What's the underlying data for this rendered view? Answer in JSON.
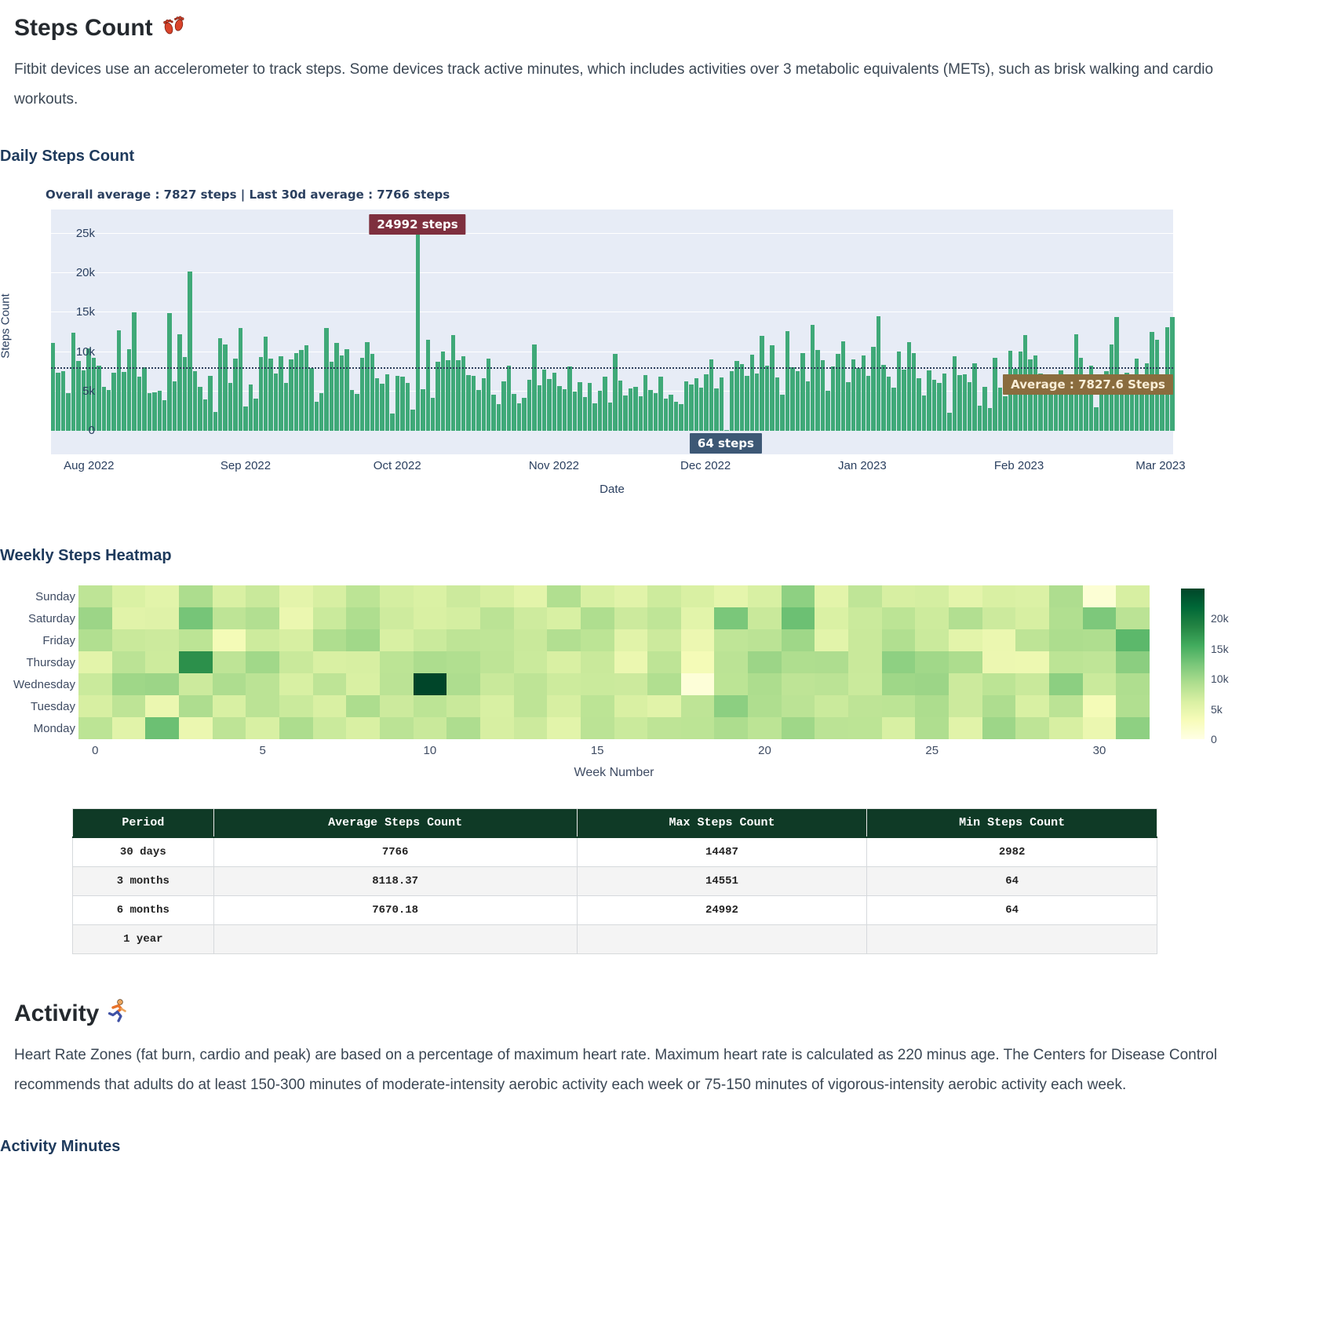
{
  "steps": {
    "title": "Steps Count",
    "description": "Fitbit devices use an accelerometer to track steps. Some devices track active minutes, which includes activities over 3 metabolic equivalents (METs), such as brisk walking and cardio workouts."
  },
  "activity": {
    "title": "Activity",
    "description": "Heart Rate Zones (fat burn, cardio and peak) are based on a percentage of maximum heart rate. Maximum heart rate is calculated as 220 minus age. The Centers for Disease Control recommends that adults do at least 150-300 minutes of moderate-intensity aerobic activity each week or 75-150 minutes of vigorous-intensity aerobic activity each week.",
    "subsection": "Activity Minutes"
  },
  "colors": {
    "bar": "#3fa978",
    "plot_bg": "#e7ecf6",
    "badge_max": "#7e2f3e",
    "badge_min": "#3d5875",
    "badge_avg": "#8a6c3e",
    "table_header": "#0f3a26",
    "heading_blue": "#1e3a5c"
  },
  "chart_data": [
    {
      "id": "daily_steps",
      "type": "bar",
      "title": "Daily Steps Count",
      "subtitle": "Overall average : 7827 steps | Last 30d average : 7766 steps",
      "xlabel": "Date",
      "ylabel": "Steps Count",
      "ylim": [
        0,
        28000
      ],
      "grid": true,
      "yticks": [
        {
          "label": "0",
          "v": 0
        },
        {
          "label": "5k",
          "v": 5000
        },
        {
          "label": "10k",
          "v": 10000
        },
        {
          "label": "15k",
          "v": 15000
        },
        {
          "label": "20k",
          "v": 20000
        },
        {
          "label": "25k",
          "v": 25000
        }
      ],
      "x_months": [
        {
          "label": "Aug 2022",
          "idx": 7
        },
        {
          "label": "Sep 2022",
          "idx": 38
        },
        {
          "label": "Oct 2022",
          "idx": 68
        },
        {
          "label": "Nov 2022",
          "idx": 99
        },
        {
          "label": "Dec 2022",
          "idx": 129
        },
        {
          "label": "Jan 2023",
          "idx": 160
        },
        {
          "label": "Feb 2023",
          "idx": 191
        },
        {
          "label": "Mar 2023",
          "idx": 219
        }
      ],
      "average": 7827.6,
      "annotations": {
        "max": {
          "label": "24992 steps",
          "idx": 72
        },
        "min": {
          "label": "64 steps",
          "idx": 133
        },
        "avg": {
          "label": "Average : 7827.6 Steps"
        }
      },
      "values": [
        11200,
        7400,
        7600,
        4800,
        12500,
        8900,
        7700,
        10500,
        9300,
        8300,
        5600,
        5200,
        7400,
        12800,
        7500,
        10400,
        15000,
        6900,
        8100,
        4800,
        4900,
        5100,
        3900,
        14900,
        6300,
        12300,
        9400,
        20200,
        7600,
        5600,
        4000,
        7000,
        2400,
        11800,
        11000,
        6100,
        9200,
        13000,
        3100,
        5900,
        4100,
        9400,
        12000,
        9200,
        7300,
        9500,
        6100,
        9100,
        9900,
        10300,
        10900,
        8000,
        3700,
        4800,
        13000,
        8800,
        11200,
        9600,
        10400,
        5200,
        4700,
        9300,
        11300,
        9800,
        6700,
        6000,
        7200,
        2200,
        7000,
        6900,
        6100,
        2700,
        24992,
        5300,
        11600,
        4200,
        8800,
        10100,
        9000,
        12200,
        9000,
        9500,
        7100,
        7000,
        5200,
        6700,
        9200,
        4600,
        3400,
        6300,
        8300,
        4700,
        3500,
        4200,
        6500,
        11000,
        5800,
        7800,
        6600,
        7400,
        5700,
        5300,
        8200,
        5000,
        6200,
        4300,
        6100,
        3500,
        5100,
        6900,
        3600,
        9800,
        6400,
        4500,
        5400,
        5600,
        4400,
        7100,
        5200,
        4800,
        6900,
        4100,
        4600,
        3700,
        3400,
        6300,
        5900,
        6700,
        5500,
        7200,
        9100,
        5400,
        6800,
        64,
        7600,
        8900,
        8500,
        7000,
        9700,
        7300,
        12100,
        8300,
        10900,
        6800,
        4600,
        12700,
        8100,
        7600,
        9900,
        6300,
        13400,
        10300,
        9000,
        5100,
        8200,
        9800,
        11400,
        6200,
        9100,
        8000,
        9600,
        7000,
        10700,
        14551,
        8400,
        6900,
        5500,
        10100,
        7800,
        11300,
        9900,
        6700,
        4500,
        7700,
        6500,
        6100,
        7300,
        2300,
        9500,
        7100,
        7200,
        6200,
        8600,
        3200,
        5600,
        2900,
        9300,
        5500,
        4400,
        10200,
        7900,
        10100,
        12200,
        9100,
        9600,
        7300,
        7100,
        6900,
        5400,
        7700,
        5300,
        7000,
        12300,
        9300,
        5500,
        8300,
        2982,
        6900,
        7600,
        11000,
        14487,
        7200,
        7400,
        5800,
        9200,
        6400,
        8600,
        12600,
        11600,
        5000,
        13100,
        14400
      ]
    },
    {
      "id": "weekly_heatmap",
      "type": "heatmap",
      "title": "Weekly Steps Heatmap",
      "xlabel": "Week Number",
      "rows": [
        "Sunday",
        "Saturday",
        "Friday",
        "Thursday",
        "Wednesday",
        "Tuesday",
        "Monday"
      ],
      "xticks": [
        0,
        5,
        10,
        15,
        20,
        25,
        30
      ],
      "n_weeks": 32,
      "zmin": 0,
      "zmax": 25000,
      "colorbar_ticks": [
        {
          "label": "20k",
          "f": 0.2
        },
        {
          "label": "15k",
          "f": 0.4
        },
        {
          "label": "10k",
          "f": 0.6
        },
        {
          "label": "5k",
          "f": 0.8
        },
        {
          "label": "0",
          "f": 1.0
        }
      ],
      "values": [
        [
          8200,
          6100,
          5300,
          9400,
          6200,
          7400,
          5100,
          6400,
          8300,
          6600,
          6100,
          7200,
          6400,
          5200,
          9100,
          6300,
          5400,
          7100,
          6200,
          5000,
          6300,
          11200,
          5200,
          8100,
          6400,
          6600,
          5100,
          6200,
          6000,
          9300,
          1200,
          6400
        ],
        [
          10400,
          5400,
          5600,
          12600,
          8200,
          9000,
          4400,
          7300,
          9200,
          7000,
          6200,
          6600,
          8400,
          7000,
          6300,
          9200,
          7200,
          8100,
          5300,
          12400,
          7400,
          13200,
          6100,
          7300,
          8300,
          7100,
          9000,
          7200,
          6400,
          9100,
          12200,
          8400
        ],
        [
          9100,
          7400,
          7200,
          8300,
          3400,
          7100,
          6400,
          9200,
          10100,
          6300,
          7300,
          8200,
          8100,
          7400,
          9000,
          8300,
          5400,
          7200,
          4300,
          8100,
          8400,
          10200,
          5300,
          7400,
          9100,
          7300,
          5200,
          4400,
          8200,
          9400,
          9200,
          14100
        ],
        [
          5200,
          8400,
          7100,
          17800,
          8200,
          10100,
          7400,
          6200,
          6400,
          8300,
          9400,
          9100,
          8200,
          7300,
          6200,
          7400,
          4400,
          8200,
          3400,
          8400,
          10400,
          9200,
          9300,
          7400,
          11200,
          10100,
          9400,
          4300,
          4200,
          8300,
          8100,
          11400
        ],
        [
          7300,
          10200,
          10400,
          7200,
          9300,
          8400,
          6300,
          8200,
          6200,
          8400,
          24992,
          9300,
          7400,
          8200,
          7100,
          7300,
          7200,
          9100,
          900,
          8300,
          9400,
          8200,
          8400,
          7300,
          10200,
          10400,
          7200,
          8300,
          7400,
          11300,
          7300,
          9200
        ],
        [
          6400,
          8200,
          4400,
          9300,
          6300,
          8400,
          7300,
          6200,
          9400,
          7200,
          8300,
          7400,
          6300,
          8200,
          6400,
          8300,
          6200,
          5400,
          8200,
          11300,
          9200,
          8400,
          7300,
          8200,
          8300,
          9400,
          7200,
          9300,
          6300,
          8400,
          3400,
          9100
        ],
        [
          8300,
          5400,
          13200,
          4400,
          8200,
          6300,
          9400,
          7300,
          6200,
          8400,
          7400,
          9300,
          6400,
          7200,
          5300,
          8400,
          7300,
          8200,
          8300,
          9400,
          8300,
          10200,
          8400,
          8300,
          6300,
          9200,
          5400,
          10300,
          8200,
          6400,
          4400,
          11200
        ]
      ]
    },
    {
      "id": "summary_table",
      "type": "table",
      "headers": [
        "Period",
        "Average Steps Count",
        "Max Steps Count",
        "Min Steps Count"
      ],
      "rows": [
        [
          "30 days",
          "7766",
          "14487",
          "2982"
        ],
        [
          "3 months",
          "8118.37",
          "14551",
          "64"
        ],
        [
          "6 months",
          "7670.18",
          "24992",
          "64"
        ],
        [
          "1 year",
          "",
          "",
          ""
        ]
      ]
    }
  ]
}
